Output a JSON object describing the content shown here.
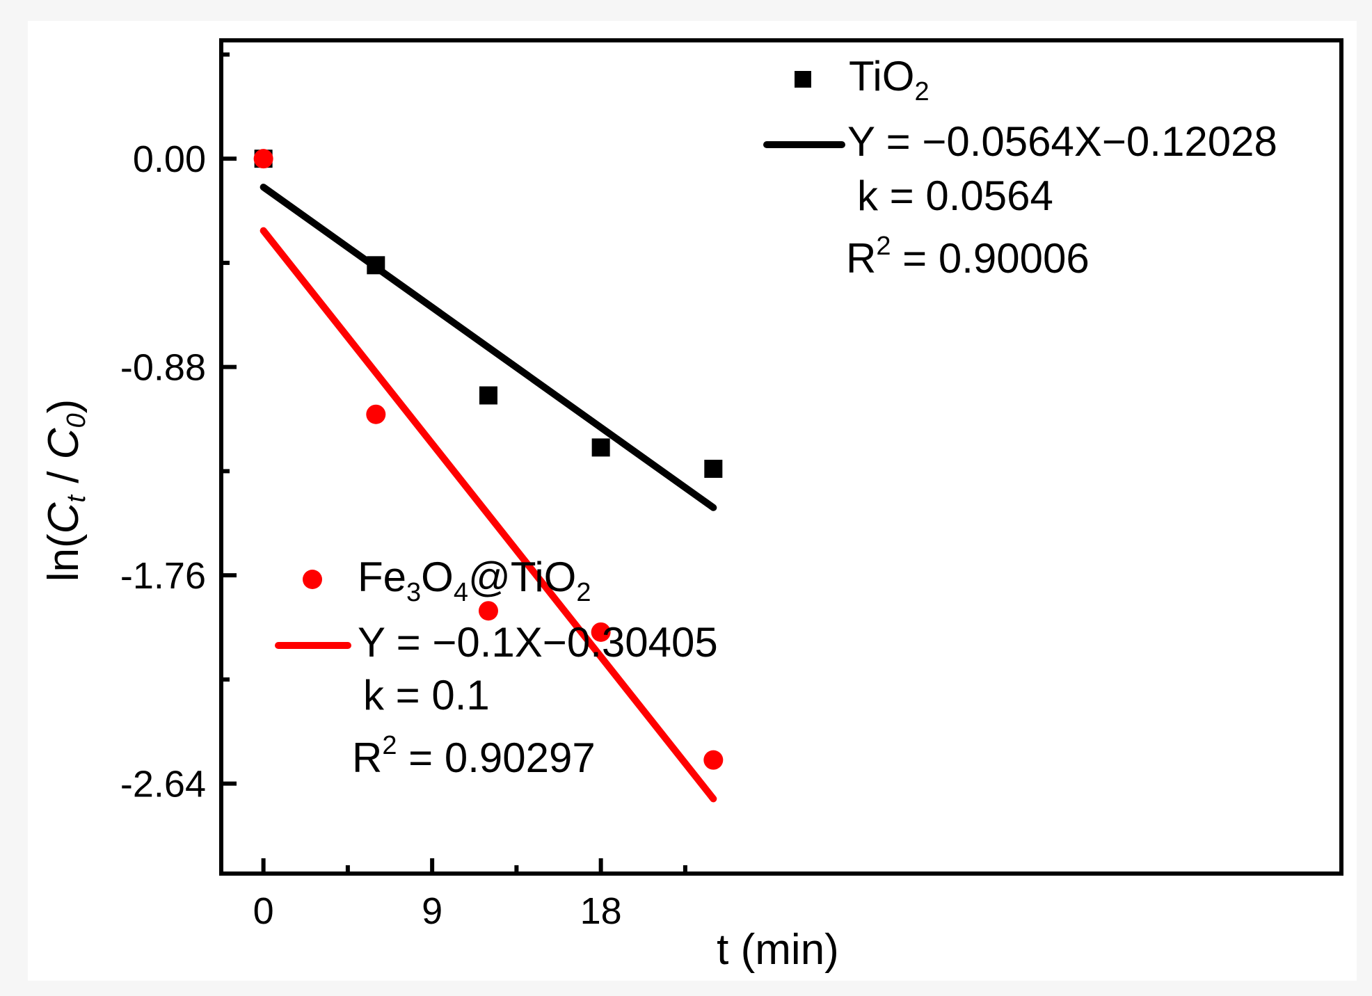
{
  "chart_data": {
    "type": "scatter",
    "title": "",
    "xlabel": "t (min)",
    "ylabel": {
      "prefix": "ln(",
      "c_t": "C",
      "t_sub": "t",
      "slash": " / ",
      "c_0": "C",
      "zero_sub": "0",
      "suffix": ")"
    },
    "xlim": [
      -2.25,
      57.5
    ],
    "ylim": [
      -3.02,
      0.5
    ],
    "x_ticks": [
      0,
      9,
      18
    ],
    "x_tick_labels": [
      "0",
      "9",
      "18"
    ],
    "x_minor_ticks": [
      4.5,
      13.5,
      22.5
    ],
    "y_ticks": [
      0,
      -0.88,
      -1.76,
      -2.64
    ],
    "y_tick_labels": [
      "0.00",
      "-0.88",
      "-1.76",
      "-2.64"
    ],
    "y_minor_ticks": [
      0.44,
      -0.44,
      -1.32,
      -2.2
    ],
    "series": [
      {
        "name": "TiO2",
        "label_main": "TiO",
        "label_sub": "2",
        "marker": "square",
        "color": "#000000",
        "x": [
          0,
          6,
          12,
          18,
          24
        ],
        "y": [
          0,
          -0.45,
          -1.0,
          -1.22,
          -1.31
        ],
        "fit": {
          "slope": -0.0564,
          "intercept": -0.12028,
          "x_range": [
            0,
            24
          ]
        },
        "equation": "Y = −0.0564X−0.12028",
        "k_text": "k = 0.0564",
        "r2_prefix": "R",
        "r2_sup": "2",
        "r2_value": " = 0.90006"
      },
      {
        "name": "Fe3O4@TiO2",
        "label_parts": [
          "Fe",
          "3",
          "O",
          "4",
          "@TiO",
          "2"
        ],
        "marker": "circle",
        "color": "#ff0000",
        "x": [
          0,
          6,
          12,
          18,
          24
        ],
        "y": [
          0,
          -1.08,
          -1.91,
          -2.0,
          -2.54
        ],
        "fit": {
          "slope": -0.1,
          "intercept": -0.30405,
          "x_range": [
            0,
            24
          ]
        },
        "equation": "Y = −0.1X−0.30405",
        "k_text": "k = 0.1",
        "r2_prefix": "R",
        "r2_sup": "2",
        "r2_value": " = 0.90297"
      }
    ],
    "legend": "top-right and bottom-left",
    "grid": false
  }
}
